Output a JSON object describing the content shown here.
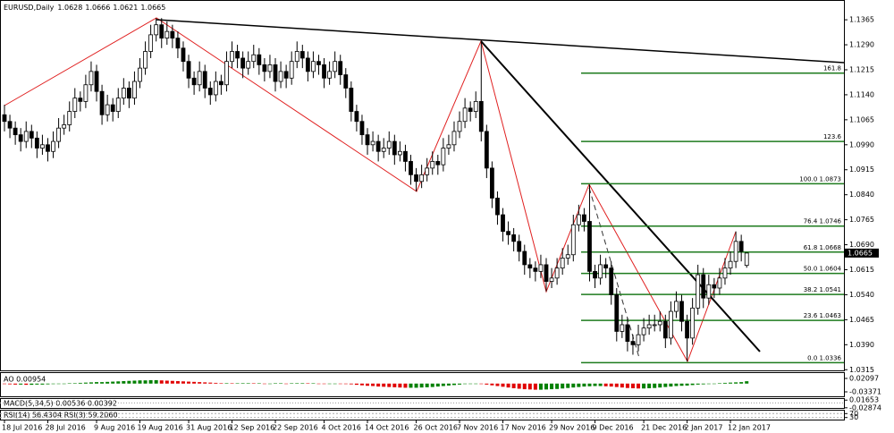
{
  "chart_data": [
    {
      "type": "candlestick",
      "symbol": "EURUSD,Daily",
      "categories": [
        "18 Jul 2016",
        null,
        null,
        null,
        null,
        null,
        null,
        null,
        "28 Jul 2016",
        null,
        null,
        null,
        null,
        null,
        null,
        null,
        null,
        "9 Aug 2016",
        null,
        null,
        null,
        null,
        null,
        null,
        null,
        "19 Aug 2016",
        null,
        null,
        null,
        null,
        null,
        null,
        null,
        null,
        "31 Aug 2016",
        null,
        null,
        null,
        null,
        null,
        null,
        null,
        "12 Sep 2016",
        null,
        null,
        null,
        null,
        null,
        null,
        null,
        "22 Sep 2016",
        null,
        null,
        null,
        null,
        null,
        null,
        null,
        null,
        "4 Oct 2016",
        null,
        null,
        null,
        null,
        null,
        null,
        null,
        "14 Oct 2016",
        null,
        null,
        null,
        null,
        null,
        null,
        null,
        null,
        "26 Oct 2016",
        null,
        null,
        null,
        null,
        null,
        null,
        null,
        "7 Nov 2016",
        null,
        null,
        null,
        null,
        null,
        null,
        null,
        "17 Nov 2016",
        null,
        null,
        null,
        null,
        null,
        null,
        null,
        null,
        "29 Nov 2016",
        null,
        null,
        null,
        null,
        null,
        null,
        null,
        "9 Dec 2016",
        null,
        null,
        null,
        null,
        null,
        null,
        null,
        null,
        "21 Dec 2016",
        null,
        null,
        null,
        null,
        null,
        null,
        null,
        "2 Jan 2017",
        null,
        null,
        null,
        null,
        null,
        null,
        null,
        "12 Jan 2017",
        null,
        null,
        null
      ],
      "ohlc": [
        [
          1.108,
          1.111,
          1.103,
          1.106
        ],
        [
          1.106,
          1.108,
          1.101,
          1.104
        ],
        [
          1.104,
          1.106,
          1.099,
          1.102
        ],
        [
          1.102,
          1.104,
          1.097,
          1.1
        ],
        [
          1.1,
          1.106,
          1.098,
          1.103
        ],
        [
          1.103,
          1.105,
          1.098,
          1.101
        ],
        [
          1.101,
          1.103,
          1.095,
          1.098
        ],
        [
          1.098,
          1.102,
          1.096,
          1.099
        ],
        [
          1.099,
          1.101,
          1.094,
          1.097
        ],
        [
          1.097,
          1.103,
          1.095,
          1.1
        ],
        [
          1.1,
          1.107,
          1.098,
          1.104
        ],
        [
          1.104,
          1.108,
          1.102,
          1.105
        ],
        [
          1.105,
          1.112,
          1.103,
          1.109
        ],
        [
          1.109,
          1.116,
          1.107,
          1.113
        ],
        [
          1.113,
          1.115,
          1.109,
          1.112
        ],
        [
          1.112,
          1.12,
          1.11,
          1.117
        ],
        [
          1.117,
          1.124,
          1.115,
          1.121
        ],
        [
          1.121,
          1.123,
          1.112,
          1.115
        ],
        [
          1.115,
          1.117,
          1.105,
          1.108
        ],
        [
          1.108,
          1.114,
          1.106,
          1.111
        ],
        [
          1.111,
          1.113,
          1.106,
          1.109
        ],
        [
          1.109,
          1.116,
          1.107,
          1.113
        ],
        [
          1.113,
          1.119,
          1.111,
          1.116
        ],
        [
          1.116,
          1.118,
          1.11,
          1.113
        ],
        [
          1.113,
          1.121,
          1.111,
          1.118
        ],
        [
          1.118,
          1.125,
          1.116,
          1.122
        ],
        [
          1.122,
          1.13,
          1.12,
          1.127
        ],
        [
          1.127,
          1.135,
          1.125,
          1.132
        ],
        [
          1.132,
          1.137,
          1.13,
          1.135
        ],
        [
          1.135,
          1.137,
          1.128,
          1.131
        ],
        [
          1.131,
          1.136,
          1.129,
          1.133
        ],
        [
          1.133,
          1.135,
          1.128,
          1.131
        ],
        [
          1.131,
          1.133,
          1.125,
          1.128
        ],
        [
          1.128,
          1.13,
          1.121,
          1.124
        ],
        [
          1.124,
          1.126,
          1.116,
          1.119
        ],
        [
          1.119,
          1.121,
          1.114,
          1.117
        ],
        [
          1.117,
          1.124,
          1.115,
          1.121
        ],
        [
          1.121,
          1.123,
          1.113,
          1.116
        ],
        [
          1.116,
          1.118,
          1.111,
          1.114
        ],
        [
          1.114,
          1.121,
          1.112,
          1.118
        ],
        [
          1.118,
          1.12,
          1.114,
          1.117
        ],
        [
          1.117,
          1.127,
          1.115,
          1.124
        ],
        [
          1.124,
          1.13,
          1.122,
          1.127
        ],
        [
          1.127,
          1.129,
          1.122,
          1.125
        ],
        [
          1.125,
          1.127,
          1.119,
          1.122
        ],
        [
          1.122,
          1.127,
          1.12,
          1.124
        ],
        [
          1.124,
          1.129,
          1.122,
          1.126
        ],
        [
          1.126,
          1.128,
          1.12,
          1.123
        ],
        [
          1.123,
          1.125,
          1.118,
          1.121
        ],
        [
          1.121,
          1.126,
          1.119,
          1.123
        ],
        [
          1.123,
          1.125,
          1.115,
          1.118
        ],
        [
          1.118,
          1.124,
          1.116,
          1.121
        ],
        [
          1.121,
          1.123,
          1.116,
          1.119
        ],
        [
          1.119,
          1.127,
          1.117,
          1.124
        ],
        [
          1.124,
          1.13,
          1.122,
          1.127
        ],
        [
          1.127,
          1.129,
          1.122,
          1.125
        ],
        [
          1.125,
          1.127,
          1.118,
          1.121
        ],
        [
          1.121,
          1.127,
          1.119,
          1.124
        ],
        [
          1.124,
          1.126,
          1.12,
          1.123
        ],
        [
          1.123,
          1.125,
          1.116,
          1.119
        ],
        [
          1.119,
          1.124,
          1.117,
          1.121
        ],
        [
          1.121,
          1.127,
          1.119,
          1.124
        ],
        [
          1.124,
          1.126,
          1.117,
          1.12
        ],
        [
          1.12,
          1.122,
          1.113,
          1.116
        ],
        [
          1.116,
          1.118,
          1.106,
          1.109
        ],
        [
          1.109,
          1.111,
          1.103,
          1.106
        ],
        [
          1.106,
          1.108,
          1.099,
          1.102
        ],
        [
          1.102,
          1.104,
          1.096,
          1.099
        ],
        [
          1.099,
          1.103,
          1.097,
          1.1
        ],
        [
          1.1,
          1.102,
          1.094,
          1.097
        ],
        [
          1.097,
          1.101,
          1.095,
          1.098
        ],
        [
          1.098,
          1.103,
          1.096,
          1.1
        ],
        [
          1.1,
          1.102,
          1.093,
          1.096
        ],
        [
          1.096,
          1.1,
          1.094,
          1.097
        ],
        [
          1.097,
          1.099,
          1.091,
          1.094
        ],
        [
          1.094,
          1.096,
          1.087,
          1.09
        ],
        [
          1.09,
          1.092,
          1.085,
          1.088
        ],
        [
          1.088,
          1.093,
          1.086,
          1.09
        ],
        [
          1.09,
          1.095,
          1.088,
          1.092
        ],
        [
          1.092,
          1.097,
          1.09,
          1.094
        ],
        [
          1.094,
          1.096,
          1.09,
          1.093
        ],
        [
          1.093,
          1.101,
          1.091,
          1.098
        ],
        [
          1.098,
          1.102,
          1.096,
          1.099
        ],
        [
          1.099,
          1.106,
          1.097,
          1.103
        ],
        [
          1.103,
          1.109,
          1.101,
          1.106
        ],
        [
          1.106,
          1.113,
          1.104,
          1.11
        ],
        [
          1.11,
          1.112,
          1.106,
          1.109
        ],
        [
          1.109,
          1.115,
          1.107,
          1.112
        ],
        [
          1.112,
          1.13,
          1.1,
          1.103
        ],
        [
          1.103,
          1.105,
          1.089,
          1.092
        ],
        [
          1.092,
          1.094,
          1.08,
          1.083
        ],
        [
          1.083,
          1.085,
          1.075,
          1.078
        ],
        [
          1.078,
          1.08,
          1.07,
          1.073
        ],
        [
          1.073,
          1.076,
          1.069,
          1.072
        ],
        [
          1.072,
          1.074,
          1.067,
          1.07
        ],
        [
          1.07,
          1.072,
          1.064,
          1.067
        ],
        [
          1.067,
          1.069,
          1.06,
          1.063
        ],
        [
          1.063,
          1.065,
          1.059,
          1.062
        ],
        [
          1.062,
          1.064,
          1.058,
          1.061
        ],
        [
          1.061,
          1.066,
          1.059,
          1.063
        ],
        [
          1.063,
          1.065,
          1.055,
          1.058
        ],
        [
          1.058,
          1.062,
          1.056,
          1.059
        ],
        [
          1.059,
          1.065,
          1.057,
          1.062
        ],
        [
          1.062,
          1.068,
          1.06,
          1.065
        ],
        [
          1.065,
          1.069,
          1.063,
          1.066
        ],
        [
          1.066,
          1.078,
          1.064,
          1.075
        ],
        [
          1.075,
          1.081,
          1.073,
          1.078
        ],
        [
          1.078,
          1.08,
          1.073,
          1.076
        ],
        [
          1.076,
          1.087,
          1.058,
          1.061
        ],
        [
          1.061,
          1.063,
          1.056,
          1.059
        ],
        [
          1.059,
          1.066,
          1.057,
          1.063
        ],
        [
          1.063,
          1.065,
          1.059,
          1.062
        ],
        [
          1.062,
          1.064,
          1.051,
          1.054
        ],
        [
          1.054,
          1.056,
          1.04,
          1.043
        ],
        [
          1.043,
          1.048,
          1.041,
          1.045
        ],
        [
          1.045,
          1.047,
          1.037,
          1.04
        ],
        [
          1.04,
          1.042,
          1.036,
          1.039
        ],
        [
          1.039,
          1.045,
          1.037,
          1.042
        ],
        [
          1.042,
          1.047,
          1.04,
          1.044
        ],
        [
          1.044,
          1.048,
          1.042,
          1.045
        ],
        [
          1.045,
          1.048,
          1.043,
          1.045
        ],
        [
          1.045,
          1.049,
          1.043,
          1.046
        ],
        [
          1.046,
          1.048,
          1.038,
          1.041
        ],
        [
          1.041,
          1.052,
          1.039,
          1.049
        ],
        [
          1.049,
          1.055,
          1.047,
          1.052
        ],
        [
          1.052,
          1.054,
          1.043,
          1.046
        ],
        [
          1.046,
          1.048,
          1.034,
          1.041
        ],
        [
          1.041,
          1.053,
          1.039,
          1.05
        ],
        [
          1.05,
          1.063,
          1.048,
          1.06
        ],
        [
          1.06,
          1.062,
          1.05,
          1.053
        ],
        [
          1.053,
          1.06,
          1.051,
          1.057
        ],
        [
          1.057,
          1.059,
          1.053,
          1.056
        ],
        [
          1.056,
          1.062,
          1.054,
          1.059
        ],
        [
          1.059,
          1.065,
          1.057,
          1.062
        ],
        [
          1.062,
          1.067,
          1.06,
          1.064
        ],
        [
          1.064,
          1.073,
          1.062,
          1.07
        ],
        [
          1.07,
          1.072,
          1.064,
          1.067
        ],
        [
          1.0628,
          1.0666,
          1.0621,
          1.0665
        ]
      ],
      "ylim": [
        1.0313,
        1.1419
      ],
      "yticks": [
        1.1365,
        {
          "value": 1.129,
          "label": "1.1290"
        },
        1.1215,
        {
          "value": 1.114,
          "label": "1.1140"
        },
        1.1065,
        {
          "value": 1.099,
          "label": "1.0990"
        },
        1.0915,
        {
          "value": 1.084,
          "label": "1.0840"
        },
        1.0765,
        {
          "value": 1.069,
          "label": "1.0690"
        },
        1.0615,
        {
          "value": 1.054,
          "label": "1.0540"
        },
        1.0465,
        {
          "value": 1.039,
          "label": "1.0390"
        },
        1.0315
      ],
      "fib_color": "#1e7b1e",
      "fib_levels": [
        {
          "label": "161.8",
          "price": 1.1205
        },
        {
          "label": "123.6",
          "price": 1.1
        },
        {
          "label": "100.0 1.0873",
          "price": 1.0873
        },
        {
          "label": "76.4 1.0746",
          "price": 1.0746
        },
        {
          "label": "61.8 1.0668",
          "price": 1.0668
        },
        {
          "label": "50.0 1.0604",
          "price": 1.0604
        },
        {
          "label": "38.2 1.0541",
          "price": 1.0541
        },
        {
          "label": "23.6 1.0463",
          "price": 1.0463
        },
        {
          "label": "0.0 1.0336",
          "price": 1.0336
        }
      ]
    },
    {
      "type": "bar",
      "title": "AO 0.00954",
      "up_color": "#008000",
      "down_color": "#e00000",
      "values": [
        -0.002,
        -0.003,
        -0.004,
        -0.004,
        -0.005,
        -0.005,
        -0.004,
        -0.004,
        -0.003,
        -0.002,
        -0.001,
        0,
        0.001,
        0.002,
        0.003,
        0.004,
        0.005,
        0.006,
        0.006,
        0.007,
        0.008,
        0.009,
        0.01,
        0.011,
        0.012,
        0.013,
        0.013,
        0.014,
        0.014,
        0.013,
        0.012,
        0.011,
        0.01,
        0.009,
        0.008,
        0.007,
        0.006,
        0.005,
        0.004,
        0.003,
        0.002,
        0.002,
        0.001,
        0.001,
        0.002,
        0.002,
        0.001,
        0.001,
        0,
        0,
        0.001,
        0.001,
        0,
        0.001,
        0.002,
        0.002,
        0.001,
        0.001,
        0,
        -0.001,
        -0.001,
        0,
        -0.001,
        -0.002,
        -0.003,
        -0.005,
        -0.007,
        -0.009,
        -0.01,
        -0.012,
        -0.013,
        -0.014,
        -0.015,
        -0.016,
        -0.017,
        -0.017,
        -0.017,
        -0.016,
        -0.015,
        -0.014,
        -0.012,
        -0.01,
        -0.008,
        -0.006,
        -0.004,
        -0.002,
        -0.001,
        0,
        -0.002,
        -0.004,
        -0.007,
        -0.01,
        -0.013,
        -0.016,
        -0.019,
        -0.021,
        -0.023,
        -0.024,
        -0.025,
        -0.025,
        -0.024,
        -0.023,
        -0.022,
        -0.02,
        -0.018,
        -0.016,
        -0.014,
        -0.012,
        -0.011,
        -0.01,
        -0.01,
        -0.011,
        -0.012,
        -0.014,
        -0.016,
        -0.018,
        -0.019,
        -0.02,
        -0.02,
        -0.019,
        -0.018,
        -0.016,
        -0.014,
        -0.012,
        -0.01,
        -0.009,
        -0.008,
        -0.006,
        -0.004,
        -0.003,
        -0.002,
        0,
        0.002,
        0.003,
        0.004,
        0.005,
        0.006,
        0.00954
      ],
      "ylim": [
        -0.0556,
        0.0429
      ],
      "yticks": [
        0.02097,
        -0.03371
      ]
    },
    {
      "type": "macd",
      "title": "MACD(5,34,5) 0.00536 0.00392",
      "ylim": [
        -0.035,
        0.023
      ],
      "yticks": [
        0.01653,
        -0.02874
      ]
    },
    {
      "type": "rsi",
      "title": "RSI(14) 56.4304 RSI(3) 59.2060",
      "ylim": [
        0,
        100
      ],
      "yticks": [
        70,
        30
      ]
    }
  ]
}
